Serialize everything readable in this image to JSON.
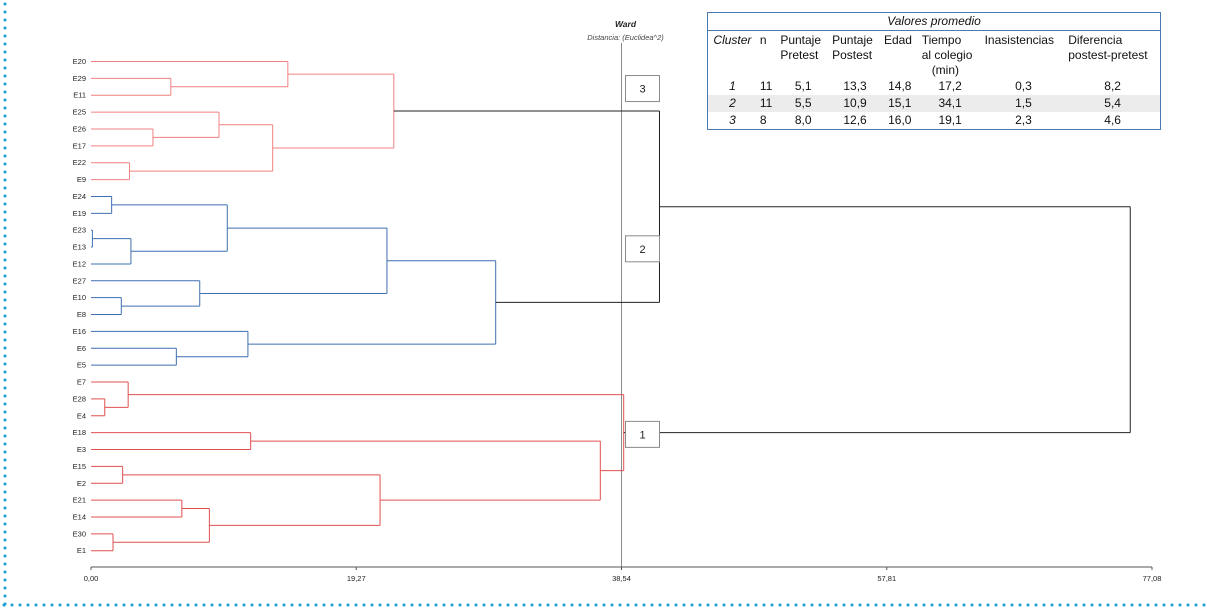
{
  "chart_data": {
    "type": "dendrogram",
    "title": "Ward",
    "subtitle": "Distancia: (Euclidea^2)",
    "xlim": [
      0,
      77.08
    ],
    "x_ticks": [
      "0,00",
      "19,27",
      "38,54",
      "57,81",
      "77,08"
    ],
    "x_tick_values": [
      0,
      19.27,
      38.54,
      57.81,
      77.08
    ],
    "cut_line": 38.54,
    "leaves": [
      "E20",
      "E29",
      "E11",
      "E25",
      "E26",
      "E17",
      "E22",
      "E9",
      "E24",
      "E19",
      "E23",
      "E13",
      "E12",
      "E27",
      "E10",
      "E8",
      "E16",
      "E6",
      "E5",
      "E7",
      "E28",
      "E4",
      "E18",
      "E3",
      "E15",
      "E2",
      "E21",
      "E14",
      "E30",
      "E1"
    ],
    "clusters": [
      {
        "label": "3",
        "color": "#f08080",
        "first": 0,
        "last": 7
      },
      {
        "label": "2",
        "color": "#3f6fb0",
        "first": 8,
        "last": 18
      },
      {
        "label": "1",
        "color": "#e05050",
        "first": 19,
        "last": 29
      }
    ],
    "merges": [
      {
        "a": "E29",
        "b": "E11",
        "h": 5.8
      },
      {
        "a": "E20",
        "b": "m0",
        "h": 14.3
      },
      {
        "a": "E26",
        "b": "E17",
        "h": 4.5
      },
      {
        "a": "E25",
        "b": "m2",
        "h": 9.3
      },
      {
        "a": "E22",
        "b": "E9",
        "h": 2.8
      },
      {
        "a": "m3",
        "b": "m4",
        "h": 13.2
      },
      {
        "a": "m1",
        "b": "m5",
        "h": 22.0
      },
      {
        "a": "E24",
        "b": "E19",
        "h": 1.5
      },
      {
        "a": "E23",
        "b": "E13",
        "h": 0.1
      },
      {
        "a": "m8",
        "b": "E12",
        "h": 2.9
      },
      {
        "a": "m7",
        "b": "m9",
        "h": 9.9
      },
      {
        "a": "E10",
        "b": "E8",
        "h": 2.2
      },
      {
        "a": "E27",
        "b": "m11",
        "h": 7.9
      },
      {
        "a": "m10",
        "b": "m12",
        "h": 21.5
      },
      {
        "a": "E6",
        "b": "E5",
        "h": 6.2
      },
      {
        "a": "E16",
        "b": "m14",
        "h": 11.4
      },
      {
        "a": "m13",
        "b": "m15",
        "h": 29.4
      },
      {
        "a": "E28",
        "b": "E4",
        "h": 1.0
      },
      {
        "a": "E7",
        "b": "m17",
        "h": 2.7
      },
      {
        "a": "E18",
        "b": "E3",
        "h": 11.6
      },
      {
        "a": "E15",
        "b": "E2",
        "h": 2.3
      },
      {
        "a": "E21",
        "b": "E14",
        "h": 6.6
      },
      {
        "a": "E30",
        "b": "E1",
        "h": 1.6
      },
      {
        "a": "m21",
        "b": "m22",
        "h": 8.6
      },
      {
        "a": "m20",
        "b": "m23",
        "h": 21.0
      },
      {
        "a": "m19",
        "b": "m24",
        "h": 37.0
      },
      {
        "a": "m18",
        "b": "m25",
        "h": 38.7
      },
      {
        "a": "m6",
        "b": "m16",
        "h": 41.3
      },
      {
        "a": "m27",
        "b": "m26",
        "h": 75.5
      }
    ]
  },
  "legend": {
    "title": "Valores promedio",
    "headers": [
      {
        "l1": "Cluster",
        "l2": "",
        "l3": ""
      },
      {
        "l1": "n",
        "l2": "",
        "l3": ""
      },
      {
        "l1": "Puntaje",
        "l2": "Pretest",
        "l3": ""
      },
      {
        "l1": "Puntaje",
        "l2": "Postest",
        "l3": ""
      },
      {
        "l1": "Edad",
        "l2": "",
        "l3": ""
      },
      {
        "l1": "Tiempo",
        "l2": "al colegio",
        "l3": "(min)"
      },
      {
        "l1": "Inasistencias",
        "l2": "",
        "l3": ""
      },
      {
        "l1": "Diferencia",
        "l2": "postest-pretest",
        "l3": ""
      }
    ],
    "rows": [
      [
        "1",
        "11",
        "5,1",
        "13,3",
        "14,8",
        "17,2",
        "0,3",
        "8,2"
      ],
      [
        "2",
        "11",
        "5,5",
        "10,9",
        "15,1",
        "34,1",
        "1,5",
        "5,4"
      ],
      [
        "3",
        "8",
        "8,0",
        "12,6",
        "16,0",
        "19,1",
        "2,3",
        "4,6"
      ]
    ]
  }
}
